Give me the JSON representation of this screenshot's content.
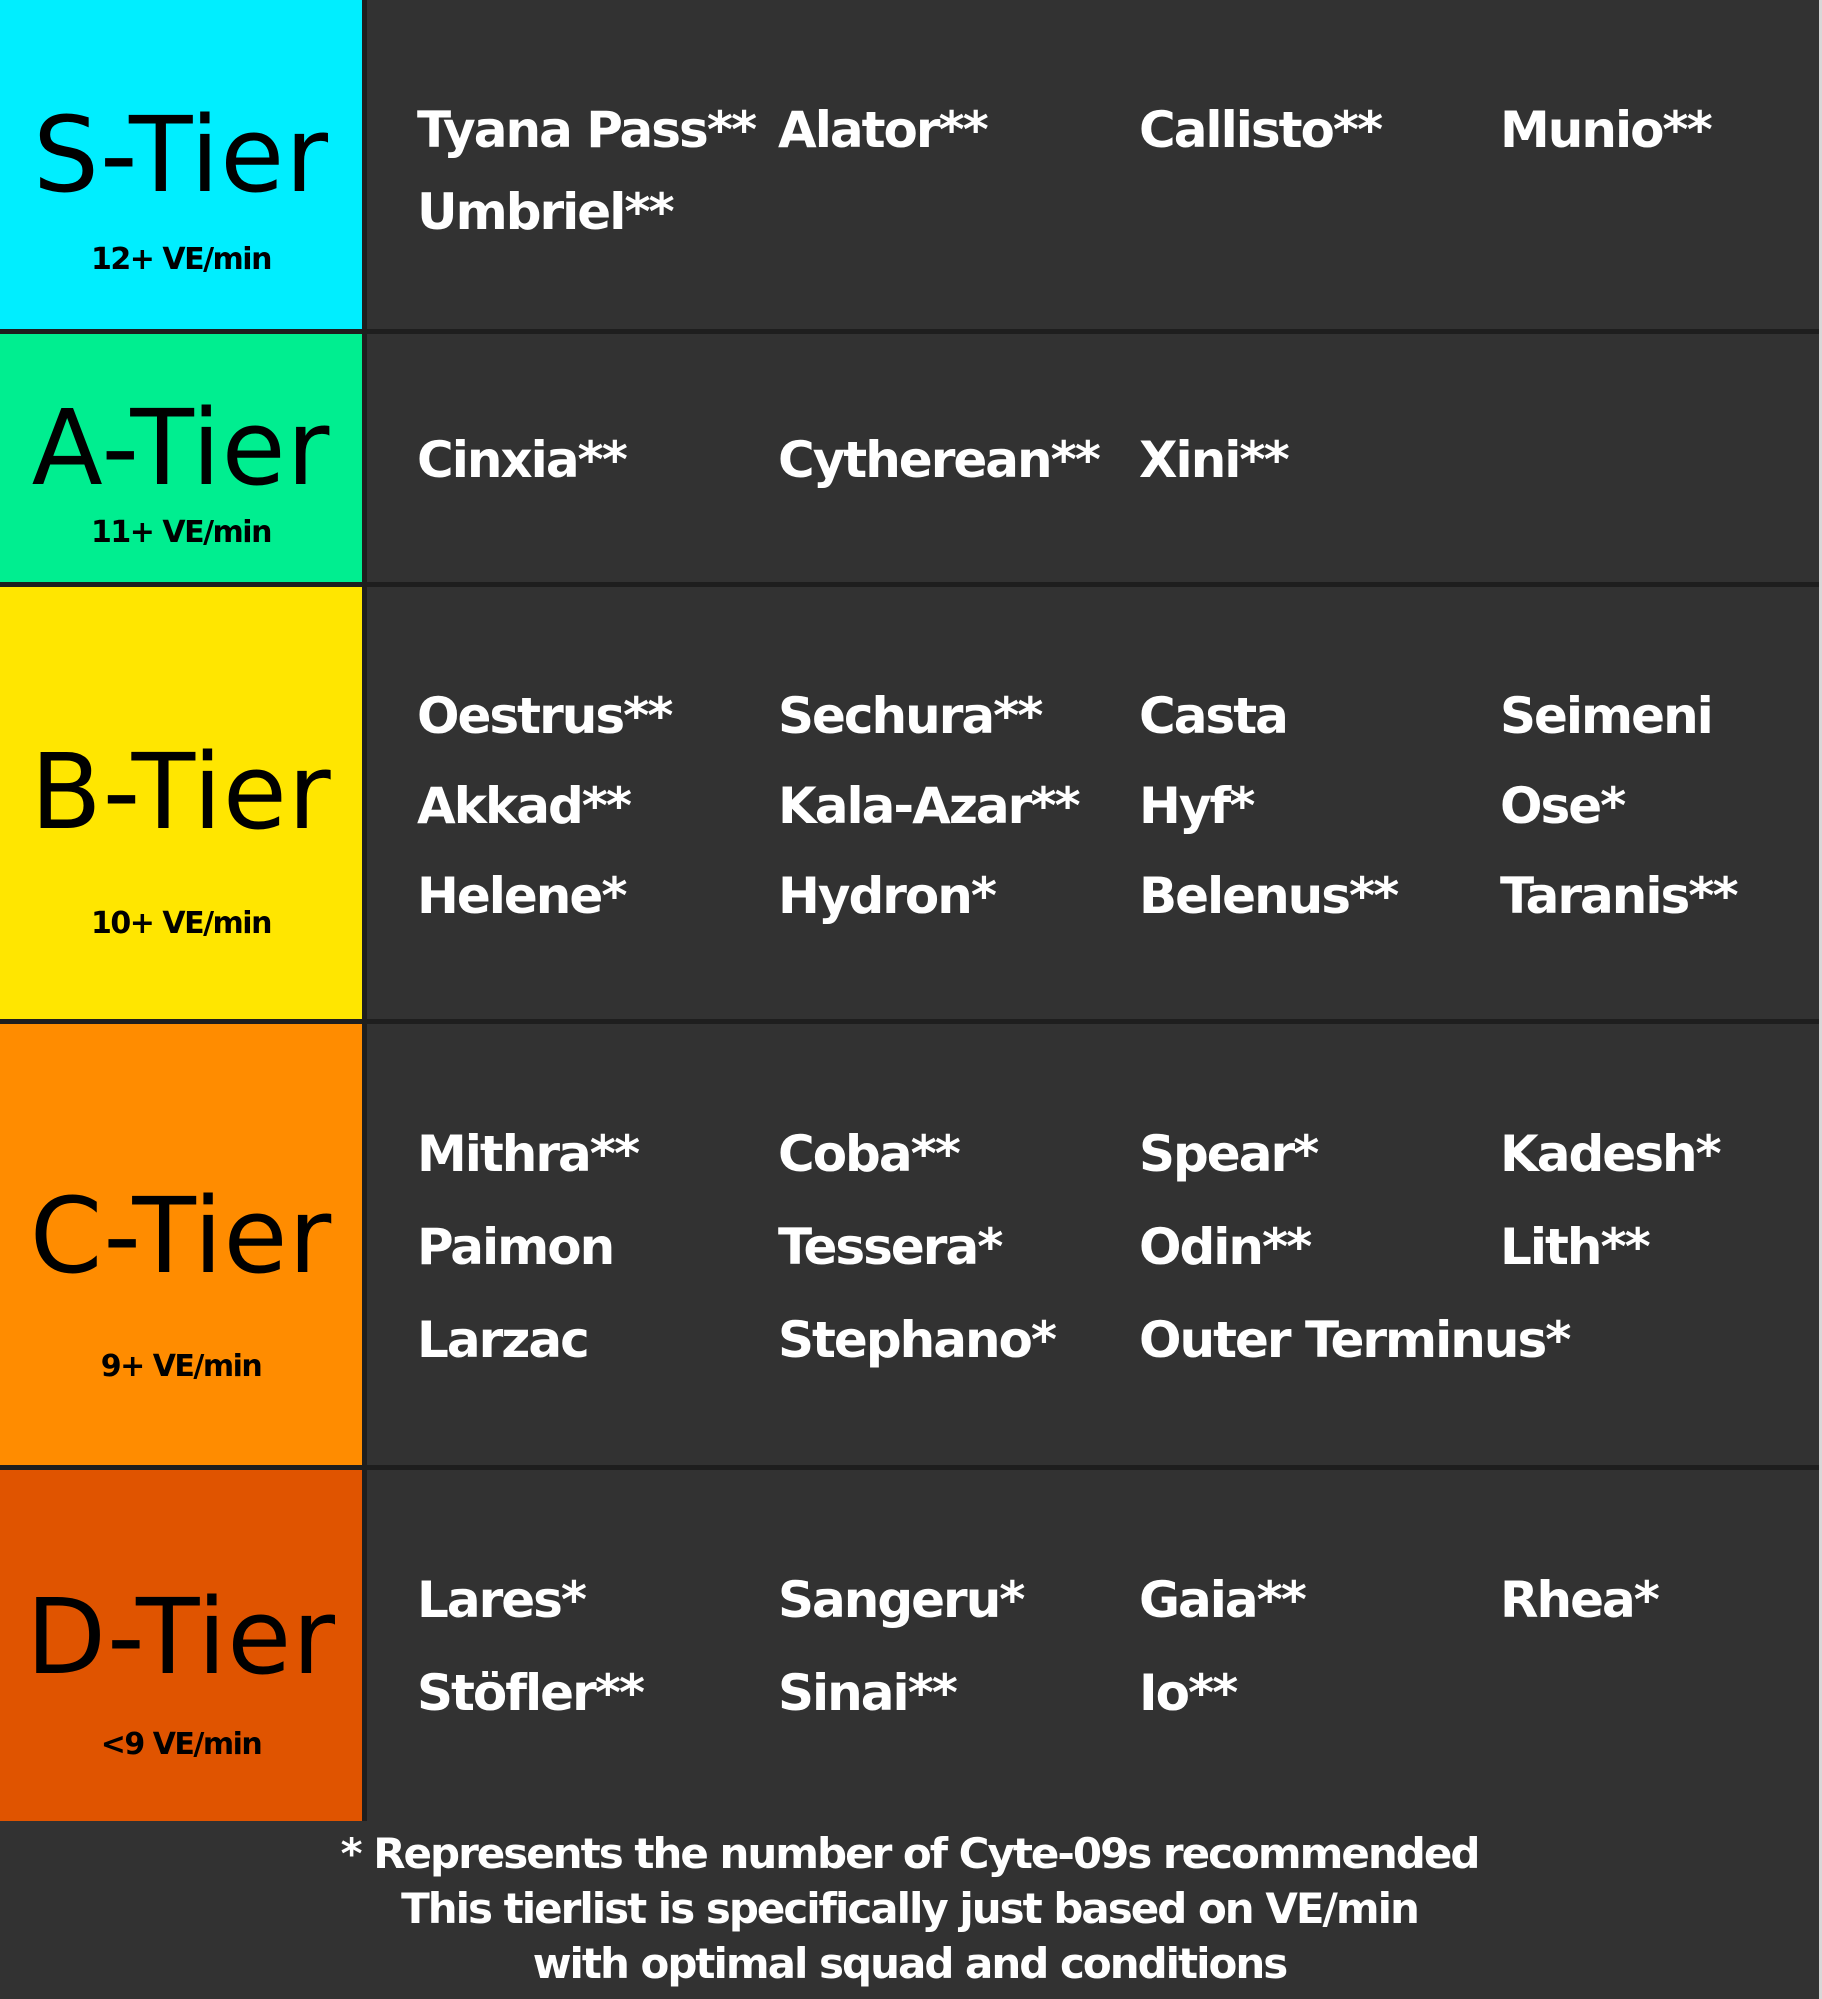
{
  "tiers": [
    {
      "title": "S-Tier",
      "subtitle": "12+ VE/min",
      "color": "#00eeff",
      "names": [
        "Tyana Pass**",
        "Alator**",
        "Callisto**",
        "Munio**",
        "Umbriel**"
      ]
    },
    {
      "title": "A-Tier",
      "subtitle": "11+ VE/min",
      "color": "#00ee90",
      "names": [
        "Cinxia**",
        "Cytherean**",
        "Xini**"
      ]
    },
    {
      "title": "B-Tier",
      "subtitle": "10+ VE/min",
      "color": "#ffe600",
      "names": [
        "Oestrus**",
        "Sechura**",
        "Casta",
        "Seimeni",
        "Akkad**",
        "Kala-Azar**",
        "Hyf*",
        "Ose*",
        "Helene*",
        "Hydron*",
        "Belenus**",
        "Taranis**"
      ]
    },
    {
      "title": "C-Tier",
      "subtitle": "9+ VE/min",
      "color": "#ff8c00",
      "names": [
        "Mithra**",
        "Coba**",
        "Spear*",
        "Kadesh*",
        "Paimon",
        "Tessera*",
        "Odin**",
        "Lith**",
        "Larzac",
        "Stephano*",
        "Outer Terminus*"
      ]
    },
    {
      "title": "D-Tier",
      "subtitle": "<9 VE/min",
      "color": "#e05400",
      "names": [
        "Lares*",
        "Sangeru*",
        "Gaia**",
        "Rhea*",
        "Stöfler**",
        "Sinai**",
        "Io**"
      ]
    }
  ],
  "footer": {
    "lines": [
      "* Represents the number of Cyte-09s recommended",
      "This tierlist is specifically just based on VE/min",
      "with optimal squad and conditions"
    ]
  }
}
